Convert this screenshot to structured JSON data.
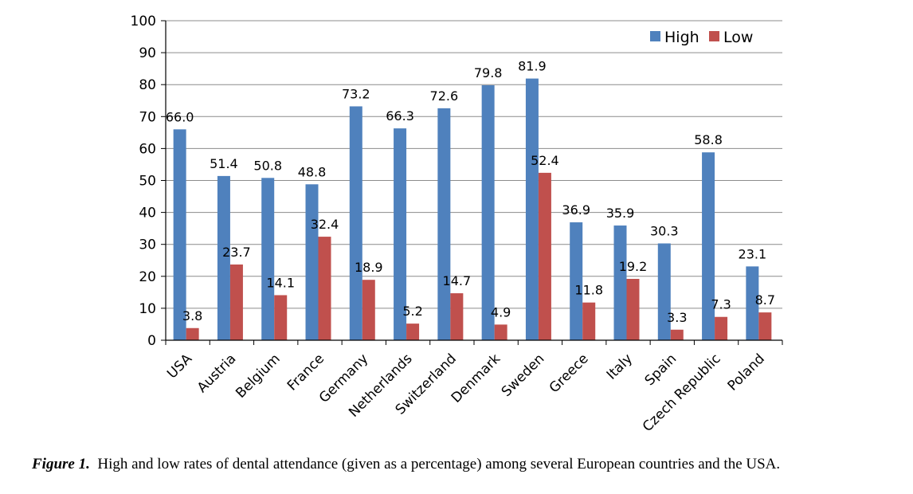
{
  "chart_data": {
    "type": "bar",
    "categories": [
      "USA",
      "Austria",
      "Belgium",
      "France",
      "Germany",
      "Netherlands",
      "Switzerland",
      "Denmark",
      "Sweden",
      "Greece",
      "Italy",
      "Spain",
      "Czech Republic",
      "Poland"
    ],
    "series": [
      {
        "name": "High",
        "color": "#4f81bd",
        "values": [
          66.0,
          51.4,
          50.8,
          48.8,
          73.2,
          66.3,
          72.6,
          79.8,
          81.9,
          36.9,
          35.9,
          30.3,
          58.8,
          23.1
        ],
        "labels": [
          "66.0",
          "51.4",
          "50.8",
          "48.8",
          "73.2",
          "66.3",
          "72.6",
          "79.8",
          "81.9",
          "36.9",
          "35.9",
          "30.3",
          "58.8",
          "23.1"
        ]
      },
      {
        "name": "Low",
        "color": "#c0504d",
        "values": [
          3.8,
          23.7,
          14.1,
          32.4,
          18.9,
          5.2,
          14.7,
          4.9,
          52.4,
          11.8,
          19.2,
          3.3,
          7.3,
          8.7
        ],
        "labels": [
          "3.8",
          "23.7",
          "14.1",
          "32.4",
          "18.9",
          "5.2",
          "14.7",
          "4.9",
          "52.4",
          "11.8",
          "19.2",
          "3.3",
          "7.3",
          "8.7"
        ]
      }
    ],
    "ylim": [
      0,
      100
    ],
    "yticks": [
      "0",
      "10",
      "20",
      "30",
      "40",
      "50",
      "60",
      "70",
      "80",
      "90",
      "100"
    ],
    "grid": true,
    "legend": "top-right",
    "xlabel": "",
    "ylabel": ""
  },
  "caption": {
    "figure_label": "Figure 1.",
    "text": "High and low rates of dental attendance (given as a percentage) among several European countries and the USA."
  }
}
